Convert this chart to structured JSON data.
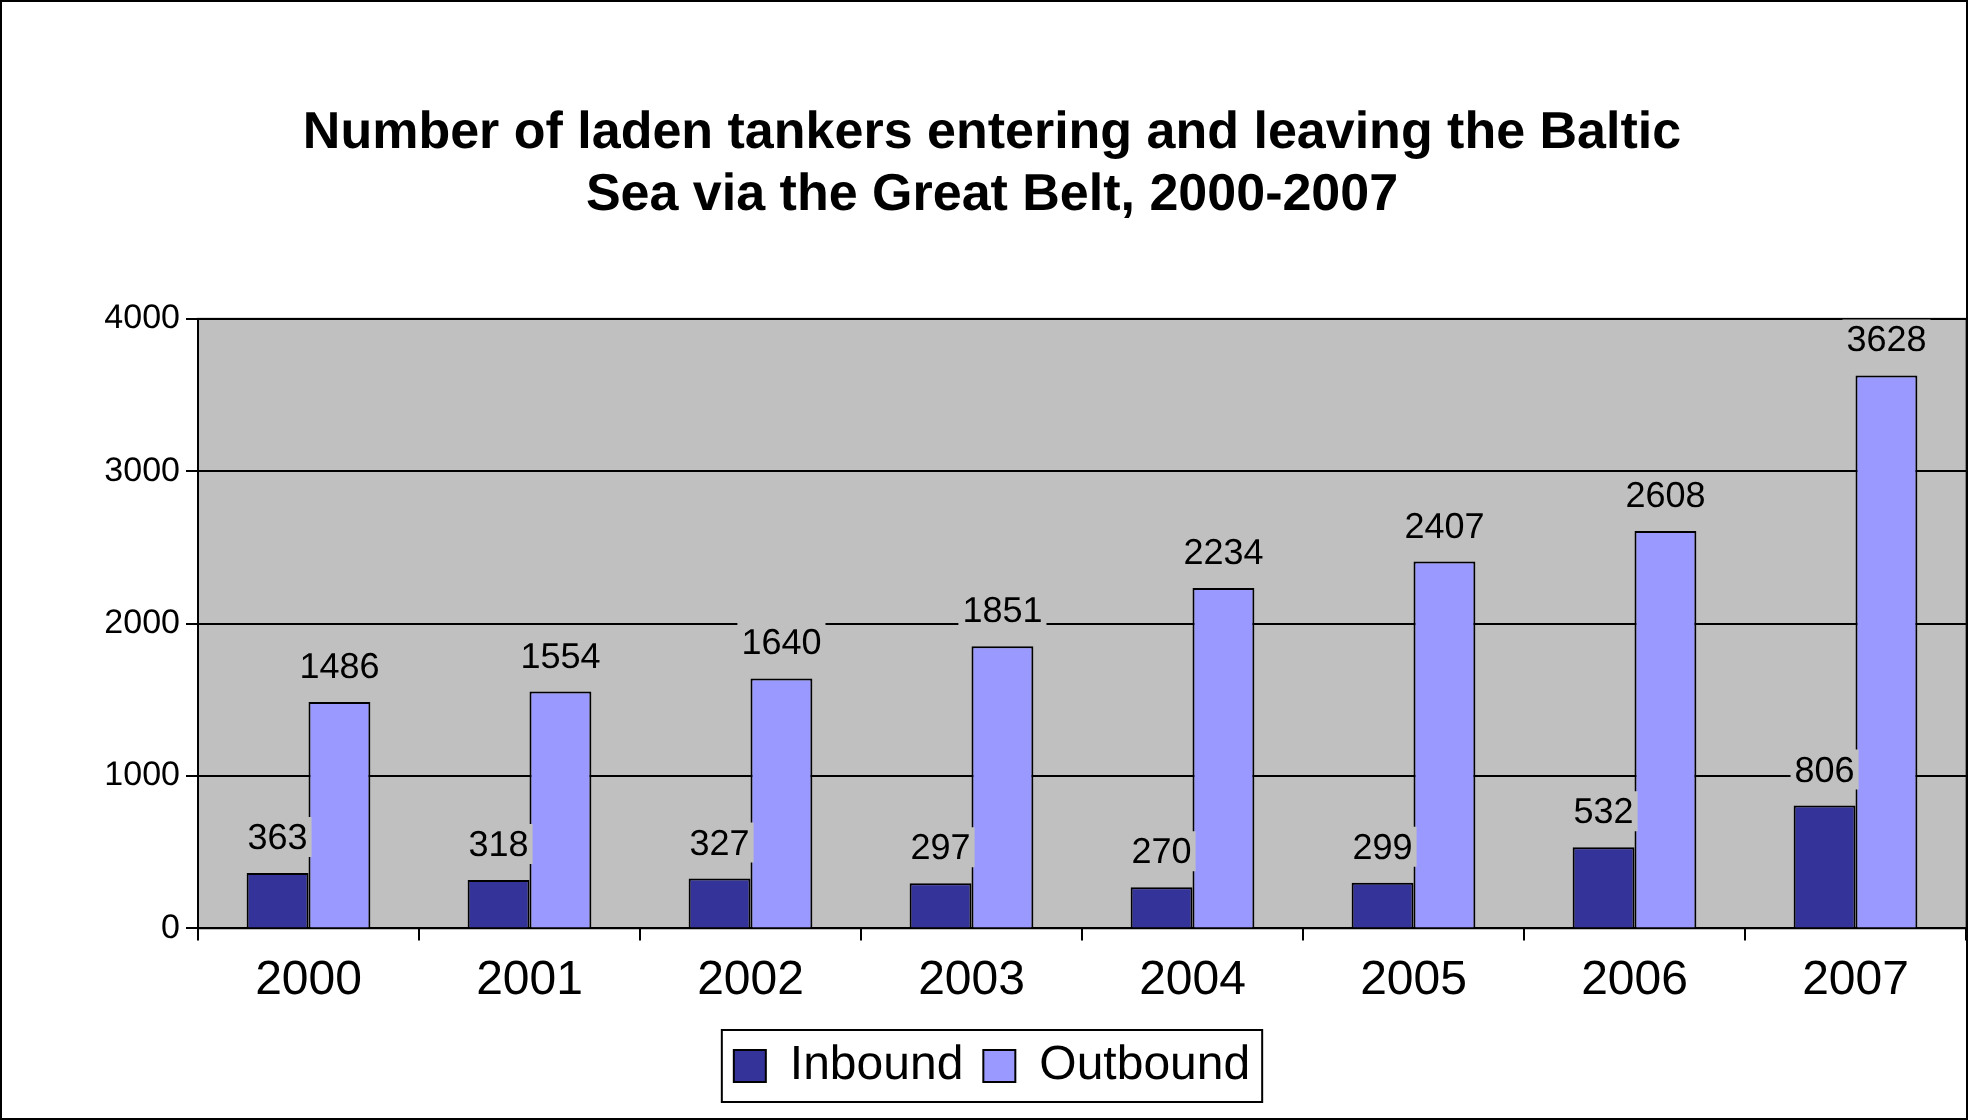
{
  "chart_data": {
    "type": "bar",
    "title": "Number of laden tankers entering and leaving the Baltic Sea via the Great Belt, 2000-2007",
    "categories": [
      "2000",
      "2001",
      "2002",
      "2003",
      "2004",
      "2005",
      "2006",
      "2007"
    ],
    "series": [
      {
        "name": "Inbound",
        "color": "#333399",
        "values": [
          363,
          318,
          327,
          297,
          270,
          299,
          532,
          806
        ]
      },
      {
        "name": "Outbound",
        "color": "#9999ff",
        "values": [
          1486,
          1554,
          1640,
          1851,
          2234,
          2407,
          2608,
          3628
        ]
      }
    ],
    "ylim": [
      0,
      4000
    ],
    "yticks": [
      0,
      1000,
      2000,
      3000,
      4000
    ],
    "grid": "y",
    "legend": "bottom",
    "data_labels": true
  }
}
